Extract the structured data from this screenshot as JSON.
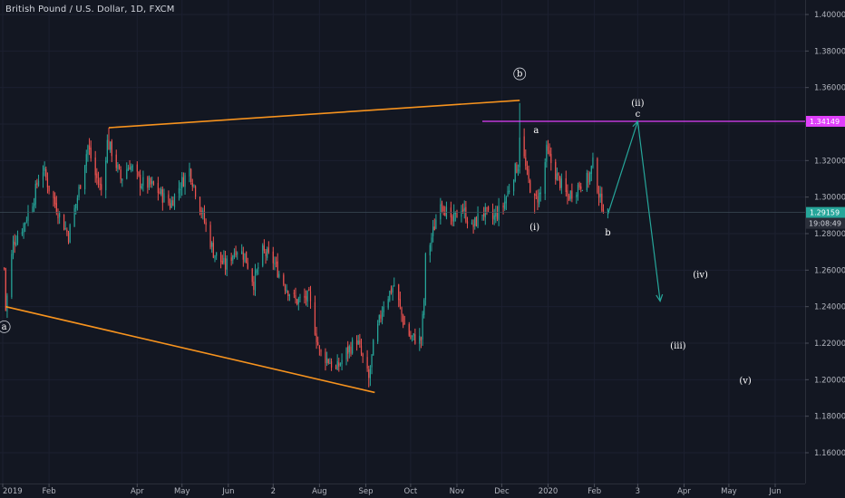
{
  "header": {
    "title": "British Pound / U.S. Dollar, 1D, FXCM"
  },
  "colors": {
    "background": "#131722",
    "up": "#26a69a",
    "down": "#ef5350",
    "trendline": "#f7931e",
    "resistance": "#e040fb",
    "projection": "#26a69a",
    "axis_text": "#b2b5be",
    "price_tag": "#26a69a",
    "timer_tag": "#2a2e39"
  },
  "chart_data": {
    "type": "candlestick",
    "symbol": "GBPUSD",
    "timeframe": "1D",
    "ylim": [
      1.15,
      1.41
    ],
    "x_range": [
      "2019-01-01",
      "2020-06-30"
    ],
    "y_ticks": [
      "1.16000",
      "1.18000",
      "1.20000",
      "1.22000",
      "1.24000",
      "1.26000",
      "1.28000",
      "1.30000",
      "1.32000",
      "1.34000",
      "1.36000",
      "1.38000",
      "1.40000"
    ],
    "x_ticks": [
      {
        "date": "2019-01-01",
        "label": "2019"
      },
      {
        "date": "2019-02-01",
        "label": "Feb"
      },
      {
        "date": "2019-04-01",
        "label": "Apr"
      },
      {
        "date": "2019-05-01",
        "label": "May"
      },
      {
        "date": "2019-06-01",
        "label": "Jun"
      },
      {
        "date": "2019-07-01",
        "label": "2"
      },
      {
        "date": "2019-08-01",
        "label": "Aug"
      },
      {
        "date": "2019-09-01",
        "label": "Sep"
      },
      {
        "date": "2019-10-01",
        "label": "Oct"
      },
      {
        "date": "2019-11-01",
        "label": "Nov"
      },
      {
        "date": "2019-12-01",
        "label": "Dec"
      },
      {
        "date": "2020-01-01",
        "label": "2020"
      },
      {
        "date": "2020-02-01",
        "label": "Feb"
      },
      {
        "date": "2020-03-01",
        "label": "3"
      },
      {
        "date": "2020-04-01",
        "label": "Apr"
      },
      {
        "date": "2020-05-01",
        "label": "May"
      },
      {
        "date": "2020-06-01",
        "label": "Jun"
      }
    ],
    "price_path": [
      [
        "2019-01-02",
        1.261
      ],
      [
        "2019-01-03",
        1.238
      ],
      [
        "2019-01-08",
        1.275
      ],
      [
        "2019-01-15",
        1.285
      ],
      [
        "2019-01-22",
        1.3
      ],
      [
        "2019-01-27",
        1.318
      ],
      [
        "2019-02-01",
        1.305
      ],
      [
        "2019-02-08",
        1.29
      ],
      [
        "2019-02-14",
        1.279
      ],
      [
        "2019-02-20",
        1.3
      ],
      [
        "2019-02-27",
        1.328
      ],
      [
        "2019-03-04",
        1.312
      ],
      [
        "2019-03-08",
        1.304
      ],
      [
        "2019-03-12",
        1.33
      ],
      [
        "2019-03-15",
        1.325
      ],
      [
        "2019-03-21",
        1.31
      ],
      [
        "2019-03-27",
        1.318
      ],
      [
        "2019-04-03",
        1.308
      ],
      [
        "2019-04-12",
        1.306
      ],
      [
        "2019-04-23",
        1.296
      ],
      [
        "2019-04-30",
        1.307
      ],
      [
        "2019-05-06",
        1.315
      ],
      [
        "2019-05-13",
        1.295
      ],
      [
        "2019-05-22",
        1.27
      ],
      [
        "2019-05-30",
        1.262
      ],
      [
        "2019-06-06",
        1.272
      ],
      [
        "2019-06-12",
        1.268
      ],
      [
        "2019-06-18",
        1.253
      ],
      [
        "2019-06-24",
        1.27
      ],
      [
        "2019-07-01",
        1.265
      ],
      [
        "2019-07-08",
        1.253
      ],
      [
        "2019-07-16",
        1.243
      ],
      [
        "2019-07-25",
        1.245
      ],
      [
        "2019-08-01",
        1.215
      ],
      [
        "2019-08-08",
        1.21
      ],
      [
        "2019-08-12",
        1.205
      ],
      [
        "2019-08-19",
        1.215
      ],
      [
        "2019-08-26",
        1.222
      ],
      [
        "2019-09-03",
        1.2
      ],
      [
        "2019-09-06",
        1.218
      ],
      [
        "2019-09-13",
        1.242
      ],
      [
        "2019-09-20",
        1.252
      ],
      [
        "2019-09-26",
        1.232
      ],
      [
        "2019-10-01",
        1.223
      ],
      [
        "2019-10-08",
        1.222
      ],
      [
        "2019-10-10",
        1.244
      ],
      [
        "2019-10-11",
        1.266
      ],
      [
        "2019-10-17",
        1.284
      ],
      [
        "2019-10-21",
        1.3
      ],
      [
        "2019-10-28",
        1.285
      ],
      [
        "2019-11-04",
        1.295
      ],
      [
        "2019-11-11",
        1.283
      ],
      [
        "2019-11-18",
        1.292
      ],
      [
        "2019-11-25",
        1.288
      ],
      [
        "2019-12-02",
        1.295
      ],
      [
        "2019-12-09",
        1.313
      ],
      [
        "2019-12-12",
        1.318
      ],
      [
        "2019-12-13",
        1.335
      ],
      [
        "2019-12-18",
        1.311
      ],
      [
        "2019-12-23",
        1.298
      ],
      [
        "2019-12-27",
        1.302
      ],
      [
        "2019-12-31",
        1.325
      ],
      [
        "2020-01-07",
        1.311
      ],
      [
        "2020-01-14",
        1.3
      ],
      [
        "2020-01-21",
        1.306
      ],
      [
        "2020-01-28",
        1.31
      ],
      [
        "2020-01-31",
        1.318
      ],
      [
        "2020-02-05",
        1.298
      ],
      [
        "2020-02-10",
        1.29
      ]
    ],
    "highlights": [
      {
        "date": "2019-01-03",
        "low": 1.238
      },
      {
        "date": "2019-03-13",
        "high": 1.338
      },
      {
        "date": "2019-09-03",
        "low": 1.1958
      },
      {
        "date": "2019-12-13",
        "high": 1.3515
      },
      {
        "date": "2019-12-23",
        "low": 1.291
      }
    ],
    "trendlines": [
      {
        "from": [
          "2019-03-13",
          1.338
        ],
        "to": [
          "2019-12-13",
          1.353
        ]
      },
      {
        "from": [
          "2019-01-03",
          1.24
        ],
        "to": [
          "2019-09-07",
          1.193
        ]
      }
    ],
    "resistance": {
      "value": 1.34149,
      "label": "1.34149",
      "from": "2019-11-18"
    },
    "last_price": {
      "value": 1.29159,
      "label": "1.29159"
    },
    "countdown": "19:08:49",
    "projection": [
      [
        "2020-02-10",
        1.2905
      ],
      [
        "2020-03-01",
        1.3415
      ],
      [
        "2020-03-16",
        1.243
      ]
    ],
    "wave_labels": [
      {
        "text": "a",
        "date": "2019-01-02",
        "value": 1.2275,
        "circled": true
      },
      {
        "text": "b",
        "date": "2019-12-13",
        "value": 1.366,
        "circled": true
      },
      {
        "text": "a",
        "date": "2019-12-24",
        "value": 1.335,
        "circled": false
      },
      {
        "text": "(i)",
        "date": "2019-12-23",
        "value": 1.282,
        "circled": false
      },
      {
        "text": "b",
        "date": "2020-02-10",
        "value": 1.279,
        "circled": false
      },
      {
        "text": "(ii)",
        "date": "2020-03-01",
        "value": 1.35,
        "circled": false
      },
      {
        "text": "c",
        "date": "2020-03-01",
        "value": 1.344,
        "circled": false
      },
      {
        "text": "(iv)",
        "date": "2020-04-12",
        "value": 1.256,
        "circled": false
      },
      {
        "text": "(iii)",
        "date": "2020-03-28",
        "value": 1.217,
        "circled": false
      },
      {
        "text": "(v)",
        "date": "2020-05-12",
        "value": 1.198,
        "circled": false
      }
    ]
  }
}
